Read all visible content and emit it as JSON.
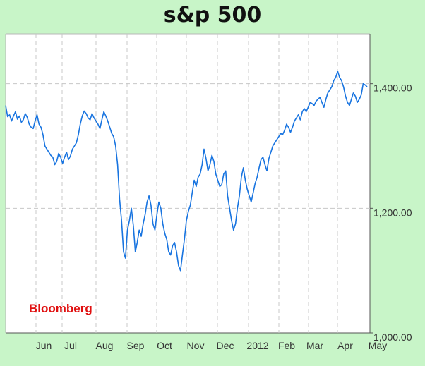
{
  "chart_data": {
    "type": "line",
    "title": "s&p 500",
    "xlabel": "",
    "ylabel": "",
    "ylim": [
      1000,
      1480
    ],
    "yticks": [
      1000,
      1200,
      1400
    ],
    "ytick_labels": [
      "1,000.00",
      "1,200.00",
      "1,400.00"
    ],
    "xtick_labels": [
      "Jun",
      "Jul",
      "Aug",
      "Sep",
      "Oct",
      "Nov",
      "Dec",
      "2012",
      "Feb",
      "Mar",
      "Apr",
      "May"
    ],
    "grid": true,
    "source_label": "Bloomberg",
    "series": [
      {
        "color": "#1874e0",
        "values": [
          1365,
          1347,
          1350,
          1340,
          1348,
          1355,
          1343,
          1348,
          1338,
          1342,
          1352,
          1346,
          1335,
          1330,
          1328,
          1340,
          1350,
          1335,
          1330,
          1318,
          1300,
          1295,
          1290,
          1285,
          1282,
          1270,
          1275,
          1288,
          1282,
          1272,
          1282,
          1290,
          1278,
          1284,
          1295,
          1300,
          1305,
          1318,
          1335,
          1348,
          1356,
          1352,
          1345,
          1342,
          1352,
          1345,
          1340,
          1335,
          1328,
          1342,
          1355,
          1348,
          1340,
          1330,
          1320,
          1315,
          1300,
          1270,
          1215,
          1180,
          1130,
          1120,
          1165,
          1180,
          1200,
          1172,
          1130,
          1145,
          1165,
          1155,
          1175,
          1190,
          1210,
          1220,
          1205,
          1175,
          1165,
          1190,
          1210,
          1200,
          1175,
          1160,
          1150,
          1130,
          1125,
          1140,
          1145,
          1130,
          1108,
          1100,
          1125,
          1150,
          1180,
          1195,
          1205,
          1225,
          1245,
          1235,
          1250,
          1255,
          1270,
          1295,
          1280,
          1260,
          1270,
          1285,
          1275,
          1255,
          1245,
          1235,
          1238,
          1255,
          1260,
          1220,
          1200,
          1180,
          1165,
          1175,
          1200,
          1220,
          1250,
          1265,
          1245,
          1230,
          1220,
          1210,
          1225,
          1240,
          1250,
          1265,
          1278,
          1282,
          1270,
          1260,
          1280,
          1290,
          1300,
          1305,
          1310,
          1315,
          1320,
          1318,
          1325,
          1335,
          1330,
          1322,
          1330,
          1340,
          1345,
          1350,
          1342,
          1355,
          1360,
          1355,
          1362,
          1370,
          1368,
          1365,
          1372,
          1375,
          1378,
          1370,
          1362,
          1375,
          1385,
          1390,
          1395,
          1405,
          1410,
          1420,
          1410,
          1405,
          1395,
          1380,
          1370,
          1365,
          1375,
          1385,
          1380,
          1370,
          1375,
          1382,
          1400,
          1398,
          1395
        ]
      }
    ]
  }
}
